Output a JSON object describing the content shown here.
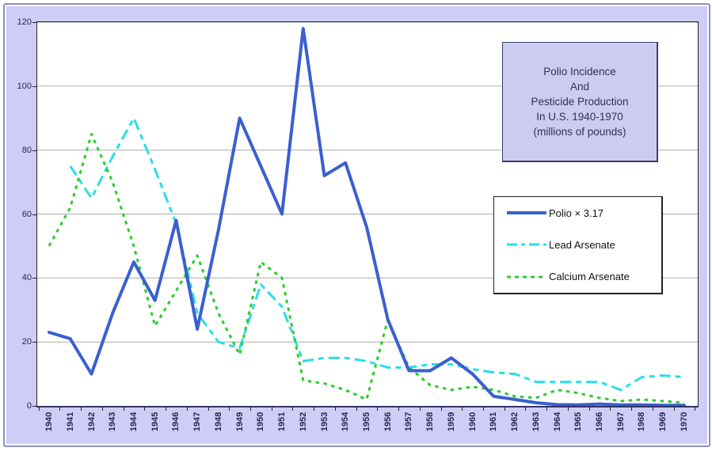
{
  "figure": {
    "background": "#ffffff",
    "frame_fill": "#cdcdf5",
    "frame_border": "#8e8ec2"
  },
  "plot": {
    "bg": "#ffffff",
    "border_color": "#222222",
    "axis_color": "#333366",
    "grid_color": "#aaaaaa"
  },
  "title_box": {
    "lines": [
      "Polio Incidence",
      "And",
      "Pesticide Production",
      "In U.S. 1940-1970",
      "(millions of pounds)"
    ],
    "bg": "#ccccf0",
    "border": "#3c3c6e",
    "text_color": "#30305e"
  },
  "y_axis": {
    "ticks": [
      0,
      20,
      40,
      60,
      80,
      100,
      120
    ]
  },
  "legend": {
    "items": [
      {
        "label": "Polio × 3.17",
        "color": "#3a5fd0",
        "width": 4,
        "dash_chart": "",
        "dash_legend": ""
      },
      {
        "label": "Lead Arsenate",
        "color": "#27dfe7",
        "width": 3,
        "dash_chart": "14 6 7 6",
        "dash_legend": "13 5 5 5"
      },
      {
        "label": "Calcium Arsenate",
        "color": "#2ecc2e",
        "width": 3,
        "dash_chart": "4.5 5.5",
        "dash_legend": "5 5"
      }
    ]
  },
  "chart_data": {
    "type": "line",
    "title": "Polio Incidence And Pesticide Production In U.S. 1940-1970 (millions of pounds)",
    "xlabel": "",
    "ylabel": "",
    "ylim": [
      0,
      120
    ],
    "grid": true,
    "legend_position": "right-middle",
    "x": [
      1940,
      1941,
      1942,
      1943,
      1944,
      1945,
      1946,
      1947,
      1948,
      1949,
      1950,
      1951,
      1952,
      1953,
      1954,
      1955,
      1956,
      1957,
      1958,
      1959,
      1960,
      1961,
      1962,
      1963,
      1964,
      1965,
      1966,
      1967,
      1968,
      1969,
      1970
    ],
    "series": [
      {
        "name": "Polio × 3.17",
        "values": [
          23,
          21,
          10,
          29,
          45,
          33,
          58,
          24,
          55,
          90,
          75,
          60,
          118,
          72,
          76,
          56,
          27,
          11,
          11,
          15,
          10,
          3,
          2,
          1,
          0.4,
          0.3,
          0.6,
          0.3,
          0.3,
          0.2,
          0.2
        ]
      },
      {
        "name": "Lead Arsenate",
        "values": [
          null,
          75,
          65,
          78,
          90,
          74,
          57,
          29,
          20,
          18,
          38,
          31,
          14,
          15,
          15,
          14,
          12,
          12,
          13,
          13,
          11.5,
          10.5,
          10,
          7.5,
          7.5,
          7.5,
          7.5,
          5,
          9,
          9.5,
          9
        ]
      },
      {
        "name": "Calcium Arsenate",
        "values": [
          50,
          62,
          85,
          70,
          50,
          25,
          36,
          47,
          29,
          16,
          45,
          40,
          8,
          7,
          5,
          2,
          27,
          12,
          6.5,
          5,
          6,
          5,
          3,
          2.5,
          5,
          4,
          2.5,
          1.5,
          2,
          1.5,
          1
        ]
      }
    ]
  }
}
